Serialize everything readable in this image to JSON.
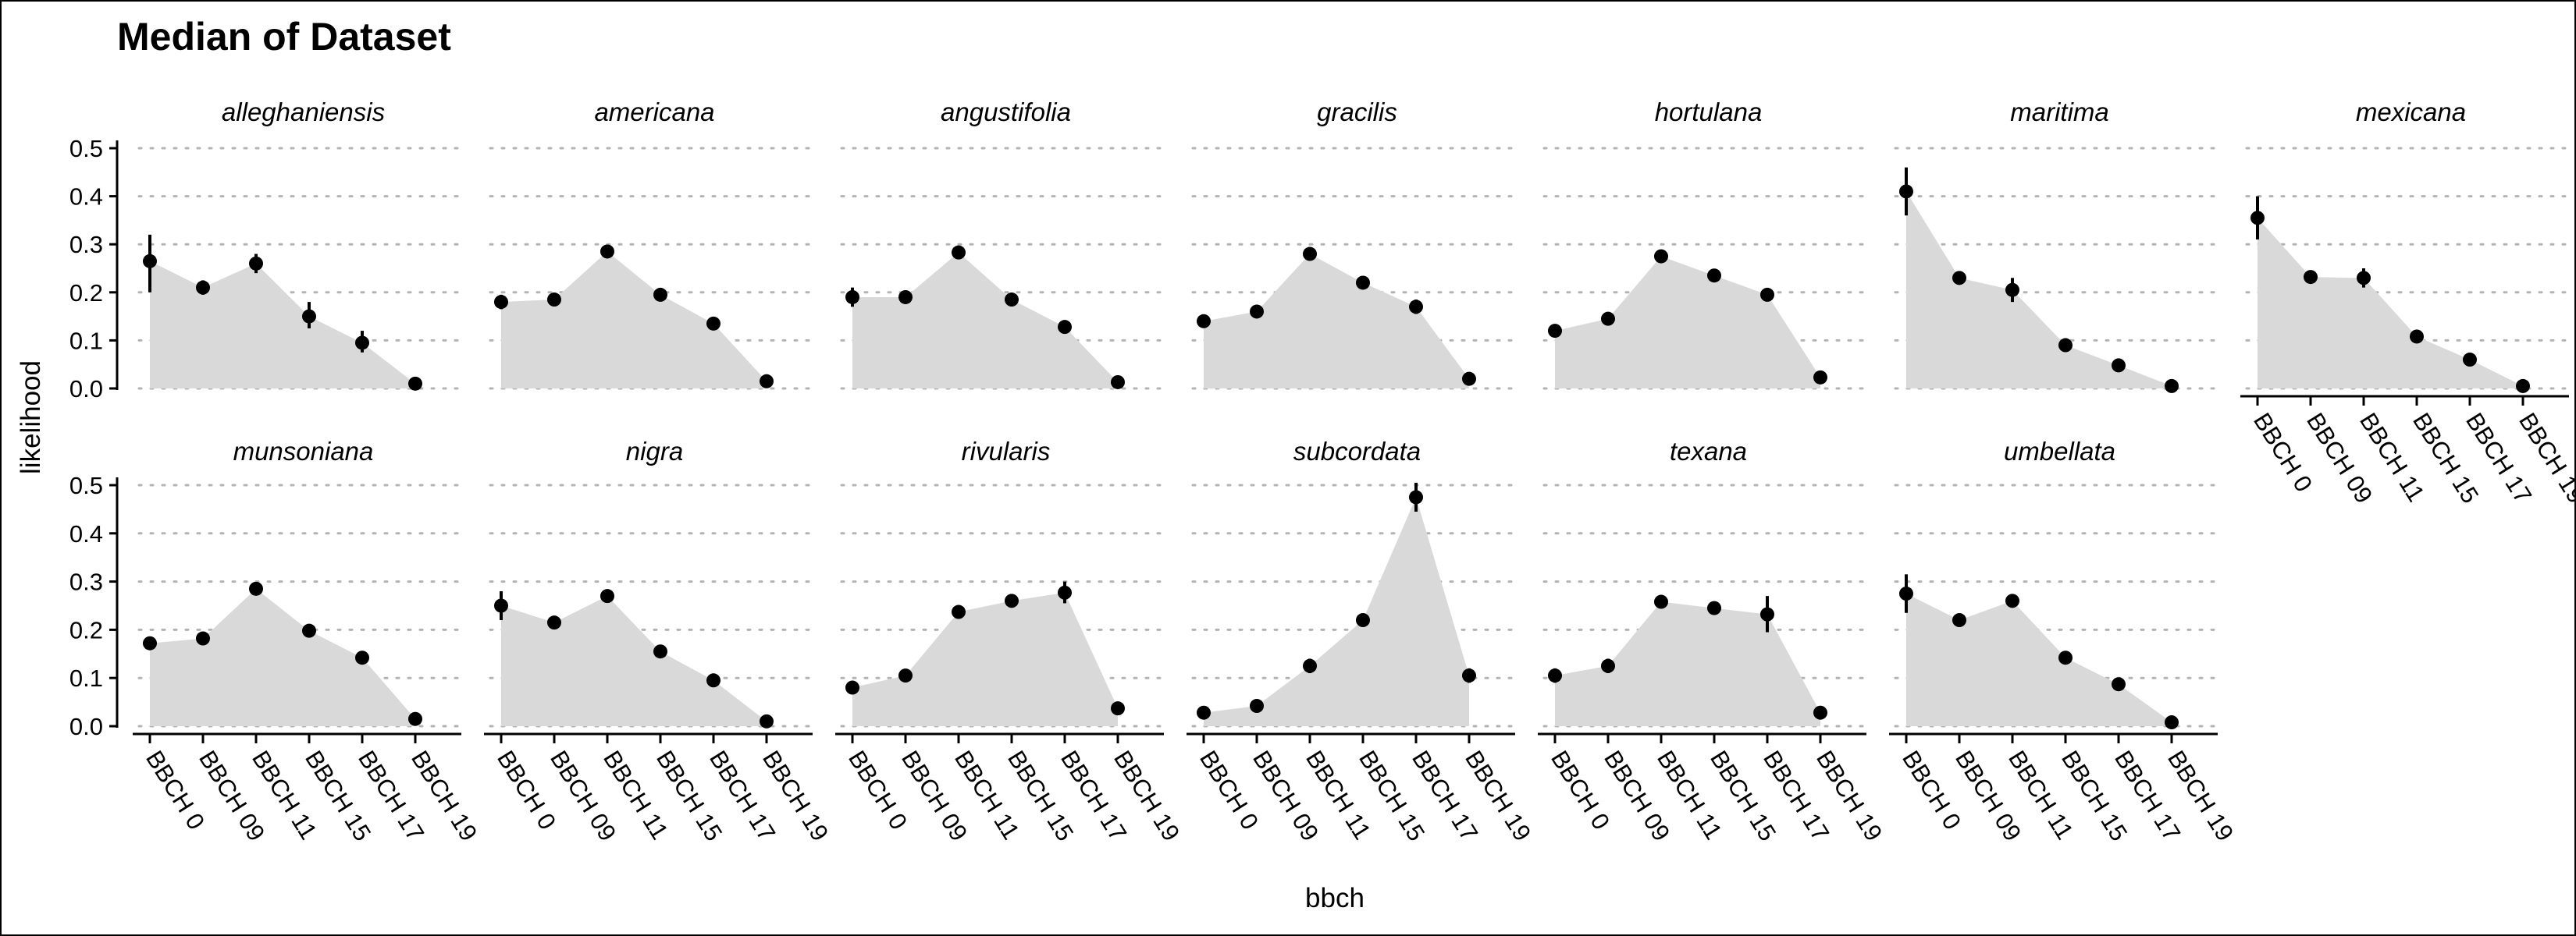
{
  "chart_data": {
    "type": "area",
    "title": "Median of Dataset",
    "xlabel": "bbch",
    "ylabel": "likelihood",
    "categories": [
      "BBCH 0",
      "BBCH 09",
      "BBCH 11",
      "BBCH 15",
      "BBCH 17",
      "BBCH 19"
    ],
    "y_ticks": [
      "0.0",
      "0.1",
      "0.2",
      "0.3",
      "0.4",
      "0.5"
    ],
    "ylim": [
      0,
      0.5
    ],
    "grid": "horizontal dotted",
    "colors": {
      "area": "#d9d9d9",
      "point": "#000000",
      "grid": "#b3b3b3"
    },
    "facets": [
      {
        "name": "alleghaniensis",
        "values": [
          0.265,
          0.21,
          0.26,
          0.15,
          0.095,
          0.01
        ],
        "lower": [
          0.2,
          0.195,
          0.24,
          0.125,
          0.075,
          0.005
        ],
        "upper": [
          0.32,
          0.225,
          0.28,
          0.18,
          0.12,
          0.015
        ]
      },
      {
        "name": "americana",
        "values": [
          0.18,
          0.185,
          0.285,
          0.195,
          0.135,
          0.015
        ],
        "lower": [
          0.165,
          0.175,
          0.275,
          0.185,
          0.125,
          0.01
        ],
        "upper": [
          0.195,
          0.195,
          0.295,
          0.205,
          0.145,
          0.02
        ]
      },
      {
        "name": "angustifolia",
        "values": [
          0.19,
          0.19,
          0.283,
          0.185,
          0.128,
          0.013
        ],
        "lower": [
          0.17,
          0.18,
          0.275,
          0.175,
          0.12,
          0.008
        ],
        "upper": [
          0.21,
          0.2,
          0.29,
          0.195,
          0.138,
          0.018
        ]
      },
      {
        "name": "gracilis",
        "values": [
          0.14,
          0.16,
          0.28,
          0.22,
          0.17,
          0.02
        ],
        "lower": [
          0.13,
          0.15,
          0.27,
          0.21,
          0.155,
          0.015
        ],
        "upper": [
          0.15,
          0.17,
          0.29,
          0.23,
          0.185,
          0.025
        ]
      },
      {
        "name": "hortulana",
        "values": [
          0.12,
          0.145,
          0.275,
          0.235,
          0.195,
          0.023
        ],
        "lower": [
          0.112,
          0.137,
          0.267,
          0.227,
          0.187,
          0.018
        ],
        "upper": [
          0.128,
          0.153,
          0.283,
          0.243,
          0.203,
          0.028
        ]
      },
      {
        "name": "maritima",
        "values": [
          0.41,
          0.23,
          0.205,
          0.09,
          0.048,
          0.005
        ],
        "lower": [
          0.36,
          0.222,
          0.18,
          0.083,
          0.042,
          0.002
        ],
        "upper": [
          0.46,
          0.238,
          0.23,
          0.097,
          0.054,
          0.008
        ]
      },
      {
        "name": "mexicana",
        "values": [
          0.355,
          0.232,
          0.23,
          0.108,
          0.06,
          0.005
        ],
        "lower": [
          0.31,
          0.224,
          0.21,
          0.1,
          0.054,
          0.002
        ],
        "upper": [
          0.4,
          0.24,
          0.25,
          0.116,
          0.066,
          0.008
        ]
      },
      {
        "name": "munsoniana",
        "values": [
          0.172,
          0.182,
          0.285,
          0.198,
          0.142,
          0.015
        ],
        "lower": [
          0.162,
          0.174,
          0.277,
          0.19,
          0.134,
          0.01
        ],
        "upper": [
          0.182,
          0.19,
          0.293,
          0.206,
          0.15,
          0.02
        ]
      },
      {
        "name": "nigra",
        "values": [
          0.25,
          0.215,
          0.27,
          0.155,
          0.095,
          0.01
        ],
        "lower": [
          0.22,
          0.205,
          0.26,
          0.145,
          0.087,
          0.005
        ],
        "upper": [
          0.28,
          0.225,
          0.28,
          0.165,
          0.103,
          0.015
        ]
      },
      {
        "name": "rivularis",
        "values": [
          0.08,
          0.105,
          0.237,
          0.26,
          0.277,
          0.037
        ],
        "lower": [
          0.074,
          0.097,
          0.229,
          0.25,
          0.255,
          0.032
        ],
        "upper": [
          0.086,
          0.113,
          0.245,
          0.27,
          0.3,
          0.042
        ]
      },
      {
        "name": "subcordata",
        "values": [
          0.028,
          0.042,
          0.125,
          0.22,
          0.475,
          0.105
        ],
        "lower": [
          0.023,
          0.036,
          0.11,
          0.21,
          0.445,
          0.09
        ],
        "upper": [
          0.033,
          0.048,
          0.14,
          0.23,
          0.505,
          0.12
        ]
      },
      {
        "name": "texana",
        "values": [
          0.105,
          0.125,
          0.258,
          0.245,
          0.232,
          0.028
        ],
        "lower": [
          0.09,
          0.11,
          0.245,
          0.235,
          0.195,
          0.023
        ],
        "upper": [
          0.12,
          0.14,
          0.27,
          0.255,
          0.27,
          0.033
        ]
      },
      {
        "name": "umbellata",
        "values": [
          0.275,
          0.22,
          0.26,
          0.142,
          0.087,
          0.008
        ],
        "lower": [
          0.235,
          0.212,
          0.25,
          0.132,
          0.079,
          0.004
        ],
        "upper": [
          0.315,
          0.228,
          0.27,
          0.152,
          0.095,
          0.012
        ]
      }
    ]
  }
}
